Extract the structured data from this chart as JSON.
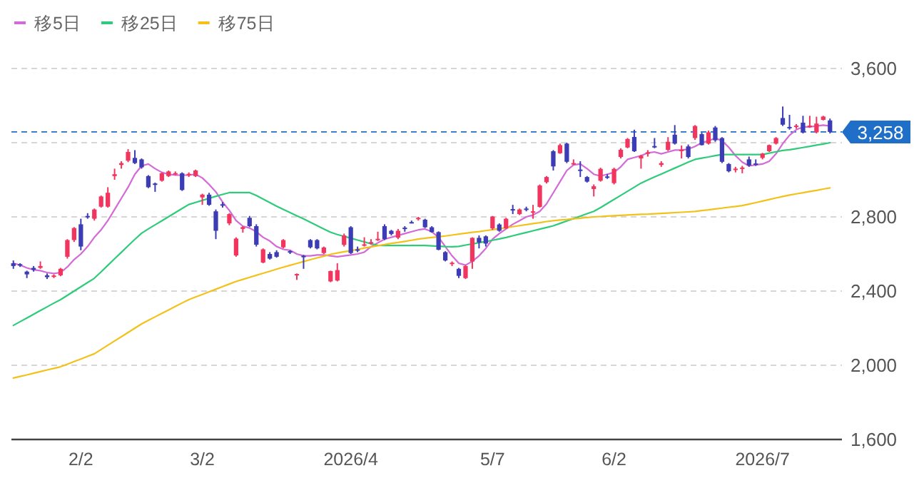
{
  "chart_data": {
    "type": "candlestick",
    "categories": [
      null,
      null,
      null,
      null,
      null,
      null,
      null,
      null,
      null,
      null,
      "2/2",
      null,
      null,
      null,
      null,
      null,
      null,
      null,
      null,
      null,
      null,
      null,
      null,
      null,
      null,
      null,
      null,
      null,
      "3/2",
      null,
      null,
      null,
      null,
      null,
      null,
      null,
      null,
      null,
      null,
      null,
      null,
      null,
      null,
      null,
      null,
      null,
      null,
      null,
      null,
      null,
      "2026/4",
      null,
      null,
      null,
      null,
      null,
      null,
      null,
      null,
      null,
      null,
      null,
      null,
      null,
      null,
      null,
      null,
      null,
      null,
      null,
      null,
      "5/7",
      null,
      null,
      null,
      null,
      null,
      null,
      null,
      null,
      null,
      null,
      null,
      null,
      null,
      null,
      null,
      null,
      null,
      "6/2",
      null,
      null,
      null,
      null,
      null,
      null,
      null,
      null,
      null,
      null,
      null,
      null,
      null,
      null,
      null,
      null,
      null,
      null,
      null,
      null,
      null,
      "2026/7",
      null,
      null,
      null,
      null,
      null,
      null,
      null,
      null,
      null,
      null
    ],
    "ohlc": [
      [
        2550,
        2565,
        2520,
        2535
      ],
      [
        2545,
        2550,
        2530,
        2540
      ],
      [
        2505,
        2510,
        2470,
        2490
      ],
      [
        2525,
        2535,
        2505,
        2515
      ],
      [
        2525,
        2560,
        2520,
        2535
      ],
      [
        2485,
        2495,
        2465,
        2475
      ],
      [
        2478,
        2490,
        2470,
        2484
      ],
      [
        2485,
        2525,
        2480,
        2520
      ],
      [
        2585,
        2680,
        2575,
        2675
      ],
      [
        2675,
        2745,
        2665,
        2740
      ],
      [
        2760,
        2790,
        2620,
        2640
      ],
      [
        2805,
        2820,
        2790,
        2800
      ],
      [
        2790,
        2845,
        2780,
        2840
      ],
      [
        2855,
        2915,
        2850,
        2910
      ],
      [
        2855,
        2960,
        2850,
        2930
      ],
      [
        3020,
        3060,
        3000,
        3030
      ],
      [
        3080,
        3100,
        3060,
        3090
      ],
      [
        3103,
        3165,
        3095,
        3150
      ],
      [
        3118,
        3160,
        3085,
        3090
      ],
      [
        3110,
        3115,
        3060,
        3067
      ],
      [
        3020,
        3025,
        2955,
        2960
      ],
      [
        2980,
        2985,
        2935,
        2975
      ],
      [
        2995,
        3040,
        2990,
        3035
      ],
      [
        3020,
        3050,
        3015,
        3045
      ],
      [
        3030,
        3045,
        3025,
        3036
      ],
      [
        3035,
        3040,
        2940,
        2945
      ],
      [
        3025,
        3040,
        3015,
        3032
      ],
      [
        3020,
        3055,
        3015,
        3050
      ],
      [
        2905,
        2925,
        2865,
        2920
      ],
      [
        2920,
        2930,
        2860,
        2865
      ],
      [
        2830,
        2840,
        2680,
        2725
      ],
      [
        2868,
        2880,
        2850,
        2862
      ],
      [
        2765,
        2820,
        2755,
        2815
      ],
      [
        2592,
        2690,
        2585,
        2683
      ],
      [
        2735,
        2750,
        2715,
        2745
      ],
      [
        2795,
        2805,
        2745,
        2750
      ],
      [
        2750,
        2760,
        2640,
        2650
      ],
      [
        2554,
        2630,
        2550,
        2625
      ],
      [
        2600,
        2610,
        2570,
        2575
      ],
      [
        2610,
        2620,
        2580,
        2585
      ],
      [
        2636,
        2680,
        2630,
        2675
      ],
      [
        2615,
        2620,
        2600,
        2608
      ],
      [
        2488,
        2495,
        2460,
        2492
      ],
      [
        2590,
        2595,
        2520,
        2585
      ],
      [
        2675,
        2680,
        2630,
        2636
      ],
      [
        2675,
        2680,
        2625,
        2630
      ],
      [
        2605,
        2640,
        2600,
        2635
      ],
      [
        2452,
        2510,
        2448,
        2508
      ],
      [
        2457,
        2550,
        2452,
        2513
      ],
      [
        2649,
        2710,
        2640,
        2700
      ],
      [
        2744,
        2750,
        2600,
        2605
      ],
      [
        2625,
        2640,
        2610,
        2620
      ],
      [
        2645,
        2690,
        2640,
        2652
      ],
      [
        2658,
        2680,
        2650,
        2664
      ],
      [
        2676,
        2720,
        2670,
        2682
      ],
      [
        2750,
        2760,
        2675,
        2680
      ],
      [
        2725,
        2730,
        2700,
        2708
      ],
      [
        2688,
        2735,
        2680,
        2725
      ],
      [
        2742,
        2750,
        2720,
        2738
      ],
      [
        2772,
        2780,
        2765,
        2770
      ],
      [
        2788,
        2800,
        2780,
        2795
      ],
      [
        2785,
        2790,
        2740,
        2744
      ],
      [
        2744,
        2750,
        2715,
        2718
      ],
      [
        2718,
        2722,
        2620,
        2623
      ],
      [
        2610,
        2615,
        2560,
        2565
      ],
      [
        2548,
        2560,
        2535,
        2553
      ],
      [
        2520,
        2525,
        2470,
        2482
      ],
      [
        2470,
        2540,
        2465,
        2535
      ],
      [
        2559,
        2690,
        2520,
        2687
      ],
      [
        2687,
        2700,
        2630,
        2662
      ],
      [
        2695,
        2700,
        2640,
        2656
      ],
      [
        2738,
        2805,
        2730,
        2802
      ],
      [
        2759,
        2765,
        2720,
        2725
      ],
      [
        2738,
        2795,
        2735,
        2790
      ],
      [
        2842,
        2865,
        2815,
        2838
      ],
      [
        2815,
        2845,
        2810,
        2840
      ],
      [
        2845,
        2855,
        2830,
        2838
      ],
      [
        2825,
        2865,
        2790,
        2830
      ],
      [
        2854,
        2975,
        2850,
        2969
      ],
      [
        2987,
        3020,
        2980,
        3015
      ],
      [
        3154,
        3160,
        3050,
        3072
      ],
      [
        3143,
        3195,
        3140,
        3187
      ],
      [
        3195,
        3200,
        3090,
        3097
      ],
      [
        3085,
        3110,
        3080,
        3090
      ],
      [
        3055,
        3100,
        3015,
        3050
      ],
      [
        3015,
        3020,
        2985,
        2990
      ],
      [
        2950,
        2975,
        2910,
        2965
      ],
      [
        2995,
        3065,
        2990,
        3059
      ],
      [
        3018,
        3030,
        3005,
        3012
      ],
      [
        2982,
        3065,
        2975,
        3059
      ],
      [
        3123,
        3170,
        3115,
        3162
      ],
      [
        3174,
        3225,
        3170,
        3220
      ],
      [
        3231,
        3270,
        3150,
        3154
      ],
      [
        3115,
        3135,
        3060,
        3130
      ],
      [
        3140,
        3160,
        3125,
        3148
      ],
      [
        3182,
        3225,
        3170,
        3178
      ],
      [
        3080,
        3100,
        3070,
        3090
      ],
      [
        3161,
        3230,
        3155,
        3205
      ],
      [
        3243,
        3295,
        3190,
        3195
      ],
      [
        3155,
        3185,
        3115,
        3162
      ],
      [
        3180,
        3190,
        3115,
        3123
      ],
      [
        3225,
        3295,
        3215,
        3290
      ],
      [
        3246,
        3255,
        3185,
        3187
      ],
      [
        3195,
        3265,
        3190,
        3256
      ],
      [
        3282,
        3290,
        3205,
        3213
      ],
      [
        3225,
        3230,
        3090,
        3097
      ],
      [
        3085,
        3090,
        3040,
        3046
      ],
      [
        3055,
        3070,
        3040,
        3060
      ],
      [
        3060,
        3075,
        3035,
        3066
      ],
      [
        3110,
        3125,
        3070,
        3077
      ],
      [
        3088,
        3110,
        3075,
        3082
      ],
      [
        3118,
        3145,
        3110,
        3141
      ],
      [
        3154,
        3190,
        3150,
        3187
      ],
      [
        3195,
        3230,
        3190,
        3225
      ],
      [
        3333,
        3395,
        3290,
        3297
      ],
      [
        3285,
        3350,
        3270,
        3280
      ],
      [
        3285,
        3300,
        3275,
        3292
      ],
      [
        3308,
        3345,
        3250,
        3256
      ],
      [
        3285,
        3345,
        3280,
        3292
      ],
      [
        3256,
        3340,
        3250,
        3303
      ],
      [
        3323,
        3345,
        3320,
        3341
      ],
      [
        3320,
        3330,
        3250,
        3258
      ]
    ],
    "colors": [
      "#3c3cb4",
      "#3c3cb4",
      "#3c3cb4",
      "#3c3cb4",
      "#f2355e",
      "#3c3cb4",
      "#f2355e",
      "#f2355e",
      "#f2355e",
      "#f2355e",
      "#3c3cb4",
      "#3c3cb4",
      "#f2355e",
      "#f2355e",
      "#f2355e",
      "#f2355e",
      "#f2355e",
      "#f2355e",
      "#3c3cb4",
      "#3c3cb4",
      "#3c3cb4",
      "#3c3cb4",
      "#f2355e",
      "#f2355e",
      "#f2355e",
      "#3c3cb4",
      "#f2355e",
      "#f2355e",
      "#f2355e",
      "#3c3cb4",
      "#3c3cb4",
      "#3c3cb4",
      "#f2355e",
      "#f2355e",
      "#f2355e",
      "#3c3cb4",
      "#3c3cb4",
      "#f2355e",
      "#3c3cb4",
      "#3c3cb4",
      "#f2355e",
      "#3c3cb4",
      "#f2355e",
      "#3c3cb4",
      "#3c3cb4",
      "#3c3cb4",
      "#f2355e",
      "#f2355e",
      "#f2355e",
      "#f2355e",
      "#3c3cb4",
      "#3c3cb4",
      "#f2355e",
      "#f2355e",
      "#f2355e",
      "#3c3cb4",
      "#3c3cb4",
      "#f2355e",
      "#3c3cb4",
      "#3c3cb4",
      "#f2355e",
      "#3c3cb4",
      "#3c3cb4",
      "#3c3cb4",
      "#3c3cb4",
      "#f2355e",
      "#3c3cb4",
      "#f2355e",
      "#f2355e",
      "#3c3cb4",
      "#3c3cb4",
      "#f2355e",
      "#3c3cb4",
      "#f2355e",
      "#3c3cb4",
      "#f2355e",
      "#3c3cb4",
      "#f2355e",
      "#f2355e",
      "#f2355e",
      "#3c3cb4",
      "#f2355e",
      "#3c3cb4",
      "#f2355e",
      "#3c3cb4",
      "#3c3cb4",
      "#f2355e",
      "#f2355e",
      "#3c3cb4",
      "#f2355e",
      "#f2355e",
      "#f2355e",
      "#3c3cb4",
      "#f2355e",
      "#f2355e",
      "#3c3cb4",
      "#f2355e",
      "#f2355e",
      "#3c3cb4",
      "#f2355e",
      "#3c3cb4",
      "#f2355e",
      "#3c3cb4",
      "#f2355e",
      "#3c3cb4",
      "#3c3cb4",
      "#3c3cb4",
      "#f2355e",
      "#f2355e",
      "#3c3cb4",
      "#3c3cb4",
      "#f2355e",
      "#f2355e",
      "#f2355e",
      "#3c3cb4",
      "#3c3cb4",
      "#f2355e",
      "#3c3cb4",
      "#f2355e",
      "#f2355e",
      "#f2355e",
      "#3c3cb4"
    ],
    "series": [
      {
        "name": "移5日",
        "type": "line",
        "color": "#d36ad8",
        "values": [
          2550,
          2540,
          2525,
          2515,
          2510,
          2500,
          2495,
          2500,
          2530,
          2570,
          2600,
          2640,
          2690,
          2730,
          2780,
          2840,
          2900,
          2960,
          3030,
          3075,
          3085,
          3060,
          3040,
          3030,
          3025,
          3025,
          3025,
          3030,
          3010,
          2975,
          2935,
          2880,
          2835,
          2780,
          2750,
          2740,
          2720,
          2690,
          2670,
          2640,
          2625,
          2620,
          2600,
          2590,
          2590,
          2595,
          2595,
          2590,
          2585,
          2590,
          2595,
          2600,
          2610,
          2640,
          2660,
          2680,
          2690,
          2700,
          2710,
          2720,
          2730,
          2735,
          2720,
          2690,
          2640,
          2590,
          2550,
          2540,
          2560,
          2590,
          2630,
          2680,
          2710,
          2735,
          2760,
          2780,
          2800,
          2810,
          2830,
          2870,
          2930,
          2990,
          3050,
          3080,
          3085,
          3060,
          3030,
          3020,
          3030,
          3040,
          3070,
          3110,
          3120,
          3130,
          3145,
          3150,
          3140,
          3150,
          3160,
          3160,
          3165,
          3180,
          3200,
          3210,
          3225,
          3210,
          3175,
          3130,
          3095,
          3075,
          3080,
          3085,
          3100,
          3140,
          3195,
          3240,
          3270,
          3285,
          3285,
          3290,
          3295,
          3290
        ]
      },
      {
        "name": "移25日",
        "type": "line",
        "color": "#2ecb7a",
        "values": [
          2215,
          2235,
          2255,
          2275,
          2295,
          2315,
          2335,
          2354,
          2377,
          2400,
          2423,
          2446,
          2469,
          2504,
          2539,
          2574,
          2609,
          2644,
          2679,
          2712,
          2735,
          2757,
          2779,
          2801,
          2823,
          2845,
          2867,
          2878,
          2889,
          2900,
          2911,
          2921,
          2931,
          2931,
          2931,
          2931,
          2915,
          2896,
          2877,
          2858,
          2840,
          2823,
          2806,
          2789,
          2771,
          2753,
          2735,
          2717,
          2705,
          2695,
          2685,
          2675,
          2665,
          2655,
          2647,
          2646,
          2646,
          2646,
          2646,
          2646,
          2646,
          2646,
          2644,
          2642,
          2640,
          2639,
          2641,
          2648,
          2654,
          2661,
          2667,
          2674,
          2681,
          2689,
          2698,
          2707,
          2716,
          2725,
          2734,
          2743,
          2752,
          2765,
          2778,
          2791,
          2804,
          2817,
          2830,
          2850,
          2872,
          2894,
          2916,
          2938,
          2960,
          2982,
          2999,
          3015,
          3031,
          3047,
          3063,
          3079,
          3095,
          3110,
          3117,
          3123,
          3130,
          3136,
          3136,
          3136,
          3136,
          3136,
          3136,
          3136,
          3144,
          3151,
          3158,
          3162,
          3168,
          3174,
          3180,
          3187,
          3193,
          3200
        ]
      },
      {
        "name": "移75日",
        "type": "line",
        "color": "#f2c21b",
        "values": [
          1931,
          1940,
          1948,
          1957,
          1966,
          1975,
          1983,
          1992,
          2006,
          2020,
          2034,
          2048,
          2062,
          2085,
          2108,
          2131,
          2154,
          2177,
          2200,
          2223,
          2242,
          2261,
          2280,
          2298,
          2317,
          2336,
          2354,
          2368,
          2382,
          2396,
          2410,
          2424,
          2438,
          2452,
          2463,
          2474,
          2485,
          2496,
          2507,
          2518,
          2529,
          2539,
          2549,
          2559,
          2569,
          2579,
          2588,
          2598,
          2605,
          2612,
          2618,
          2625,
          2632,
          2638,
          2645,
          2651,
          2657,
          2662,
          2668,
          2674,
          2680,
          2685,
          2689,
          2693,
          2697,
          2702,
          2707,
          2712,
          2717,
          2721,
          2726,
          2731,
          2736,
          2742,
          2747,
          2753,
          2758,
          2764,
          2769,
          2775,
          2779,
          2783,
          2786,
          2790,
          2793,
          2797,
          2800,
          2802,
          2804,
          2806,
          2808,
          2810,
          2812,
          2814,
          2815,
          2817,
          2819,
          2821,
          2823,
          2825,
          2827,
          2829,
          2834,
          2838,
          2843,
          2847,
          2852,
          2856,
          2861,
          2869,
          2877,
          2885,
          2894,
          2902,
          2910,
          2918,
          2924,
          2930,
          2937,
          2943,
          2950,
          2956
        ]
      }
    ],
    "ylim": [
      1600,
      3600
    ],
    "yticks": [
      {
        "value": 1600,
        "label": "1,600"
      },
      {
        "value": 2000,
        "label": "2,000"
      },
      {
        "value": 2400,
        "label": "2,400"
      },
      {
        "value": 2800,
        "label": "2,800"
      },
      {
        "value": 3200,
        "label": null
      },
      {
        "value": 3600,
        "label": "3,600"
      }
    ],
    "grid": "y",
    "legend": "top left",
    "ref_lines": [
      {
        "axis": "y",
        "value": 3258,
        "label": "3,258",
        "color": "#1f6fc8",
        "line_style": "dashed"
      }
    ]
  }
}
